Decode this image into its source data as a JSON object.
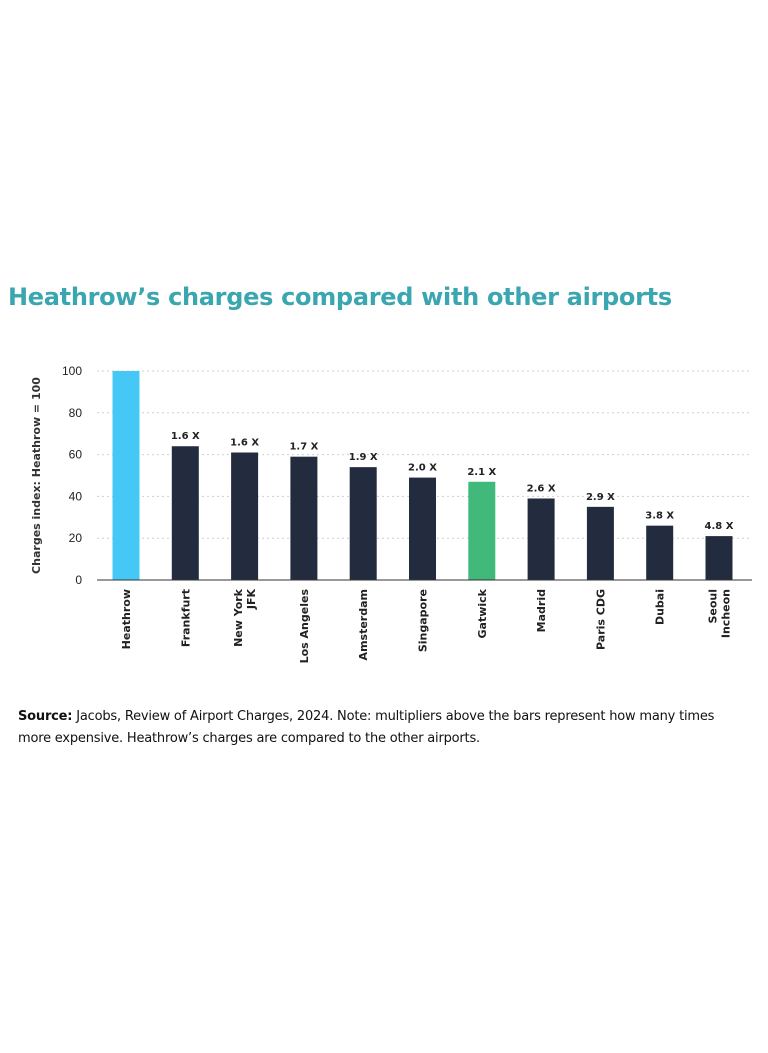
{
  "colors": {
    "title": "#3aa6b0",
    "heathrow": "#45c8f5",
    "gatwick": "#41b97a",
    "default": "#232b3e"
  },
  "chart_data": {
    "type": "bar",
    "title": "Heathrow’s charges compared with other airports",
    "ylabel": "Charges index: Heathrow = 100",
    "xlabel": "",
    "ylim": [
      0,
      100
    ],
    "yticks": [
      0,
      20,
      40,
      60,
      80,
      100
    ],
    "grid": true,
    "categories": [
      [
        "Heathrow"
      ],
      [
        "Frankfurt"
      ],
      [
        "New York",
        "JFK"
      ],
      [
        "Los Angeles"
      ],
      [
        "Amsterdam"
      ],
      [
        "Singapore"
      ],
      [
        "Gatwick"
      ],
      [
        "Madrid"
      ],
      [
        "Paris CDG"
      ],
      [
        "Dubai"
      ],
      [
        "Seoul",
        "Incheon"
      ]
    ],
    "values": [
      100,
      64,
      61,
      59,
      54,
      49,
      47,
      39,
      35,
      26,
      21
    ],
    "bar_labels": [
      "",
      "1.6 X",
      "1.6 X",
      "1.7 X",
      "1.9 X",
      "2.0 X",
      "2.1 X",
      "2.6 X",
      "2.9 X",
      "3.8 X",
      "4.8 X"
    ],
    "bar_colors": [
      "heathrow",
      "default",
      "default",
      "default",
      "default",
      "default",
      "gatwick",
      "default",
      "default",
      "default",
      "default"
    ]
  },
  "source": {
    "label": "Source:",
    "text": " Jacobs, Review of Airport Charges, 2024. Note: multipliers above the bars represent how many times more expensive. Heathrow’s charges are compared to the other airports."
  }
}
